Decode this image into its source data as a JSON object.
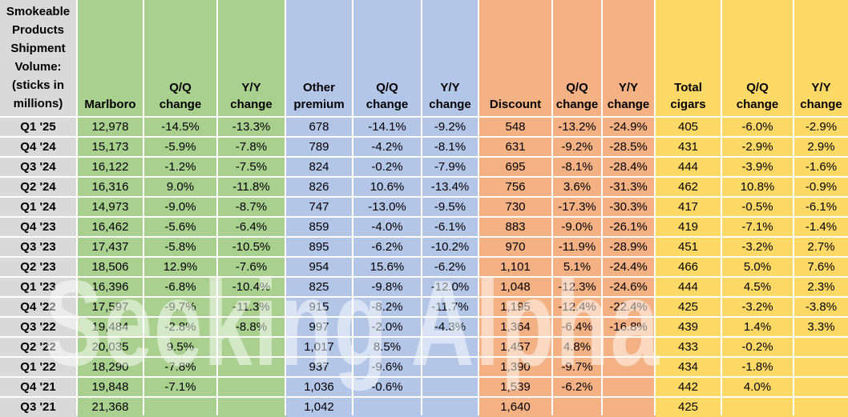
{
  "title": "Smokeable Products Shipment Volume: (sticks in millions)",
  "watermark": {
    "text": "Seeking Alpha"
  },
  "colors": {
    "label_gray": "#D9D9D9",
    "marlboro_green": "#A9D08E",
    "premium_blue": "#B4C6E7",
    "discount_orange": "#F4B183",
    "cigars_yellow": "#FFD966",
    "gridline": "#FFFFFF",
    "text": "#000000"
  },
  "header": {
    "col_groups": [
      "label",
      "marlboro",
      "marlboro",
      "marlboro",
      "premium",
      "premium",
      "premium",
      "discount",
      "discount",
      "discount",
      "cigars",
      "cigars",
      "cigars"
    ],
    "cells": [
      "Smokeable\nProducts\nShipment\nVolume:\n(sticks in\nmillions)",
      "Marlboro",
      "Q/Q\nchange",
      "Y/Y\nchange",
      "Other\npremium",
      "Q/Q\nchange",
      "Y/Y\nchange",
      "Discount",
      "Q/Q\nchange",
      "Y/Y\nchange",
      "Total\ncigars",
      "Q/Q\nchange",
      "Y/Y\nchange"
    ]
  },
  "chart_data": {
    "type": "table",
    "title": "Smokeable Products Shipment Volume: (sticks in millions)",
    "column_groups": [
      {
        "name": "Marlboro",
        "columns": [
          "Marlboro",
          "Q/Q change",
          "Y/Y change"
        ]
      },
      {
        "name": "Other premium",
        "columns": [
          "Other premium",
          "Q/Q change",
          "Y/Y change"
        ]
      },
      {
        "name": "Discount",
        "columns": [
          "Discount",
          "Q/Q change",
          "Y/Y change"
        ]
      },
      {
        "name": "Total cigars",
        "columns": [
          "Total cigars",
          "Q/Q change",
          "Y/Y change"
        ]
      }
    ],
    "columns": [
      "Quarter",
      "Marlboro",
      "Marlboro Q/Q change",
      "Marlboro Y/Y change",
      "Other premium",
      "Other premium Q/Q change",
      "Other premium Y/Y change",
      "Discount",
      "Discount Q/Q change",
      "Discount Y/Y change",
      "Total cigars",
      "Total cigars Q/Q change",
      "Total cigars Y/Y change"
    ],
    "rows": [
      [
        "Q1 '25",
        "12,978",
        "-14.5%",
        "-13.3%",
        "678",
        "-14.1%",
        "-9.2%",
        "548",
        "-13.2%",
        "-24.9%",
        "405",
        "-6.0%",
        "-2.9%"
      ],
      [
        "Q4 '24",
        "15,173",
        "-5.9%",
        "-7.8%",
        "789",
        "-4.2%",
        "-8.1%",
        "631",
        "-9.2%",
        "-28.5%",
        "431",
        "-2.9%",
        "2.9%"
      ],
      [
        "Q3 '24",
        "16,122",
        "-1.2%",
        "-7.5%",
        "824",
        "-0.2%",
        "-7.9%",
        "695",
        "-8.1%",
        "-28.4%",
        "444",
        "-3.9%",
        "-1.6%"
      ],
      [
        "Q2 '24",
        "16,316",
        "9.0%",
        "-11.8%",
        "826",
        "10.6%",
        "-13.4%",
        "756",
        "3.6%",
        "-31.3%",
        "462",
        "10.8%",
        "-0.9%"
      ],
      [
        "Q1 '24",
        "14,973",
        "-9.0%",
        "-8.7%",
        "747",
        "-13.0%",
        "-9.5%",
        "730",
        "-17.3%",
        "-30.3%",
        "417",
        "-0.5%",
        "-6.1%"
      ],
      [
        "Q4 '23",
        "16,462",
        "-5.6%",
        "-6.4%",
        "859",
        "-4.0%",
        "-6.1%",
        "883",
        "-9.0%",
        "-26.1%",
        "419",
        "-7.1%",
        "-1.4%"
      ],
      [
        "Q3 '23",
        "17,437",
        "-5.8%",
        "-10.5%",
        "895",
        "-6.2%",
        "-10.2%",
        "970",
        "-11.9%",
        "-28.9%",
        "451",
        "-3.2%",
        "2.7%"
      ],
      [
        "Q2 '23",
        "18,506",
        "12.9%",
        "-7.6%",
        "954",
        "15.6%",
        "-6.2%",
        "1,101",
        "5.1%",
        "-24.4%",
        "466",
        "5.0%",
        "7.6%"
      ],
      [
        "Q1 '23",
        "16,396",
        "-6.8%",
        "-10.4%",
        "825",
        "-9.8%",
        "-12.0%",
        "1,048",
        "-12.3%",
        "-24.6%",
        "444",
        "4.5%",
        "2.3%"
      ],
      [
        "Q4 '22",
        "17,597",
        "-9.7%",
        "-11.3%",
        "915",
        "-8.2%",
        "-11.7%",
        "1,195",
        "-12.4%",
        "-22.4%",
        "425",
        "-3.2%",
        "-3.8%"
      ],
      [
        "Q3 '22",
        "19,484",
        "-2.8%",
        "-8.8%",
        "997",
        "-2.0%",
        "-4.3%",
        "1,364",
        "-6.4%",
        "-16.8%",
        "439",
        "1.4%",
        "3.3%"
      ],
      [
        "Q2 '22",
        "20,035",
        "9.5%",
        "",
        "1,017",
        "8.5%",
        "",
        "1,457",
        "4.8%",
        "",
        "433",
        "-0.2%",
        ""
      ],
      [
        "Q1 '22",
        "18,290",
        "-7.8%",
        "",
        "937",
        "-9.6%",
        "",
        "1,390",
        "-9.7%",
        "",
        "434",
        "-1.8%",
        ""
      ],
      [
        "Q4 '21",
        "19,848",
        "-7.1%",
        "",
        "1,036",
        "-0.6%",
        "",
        "1,539",
        "-6.2%",
        "",
        "442",
        "4.0%",
        ""
      ],
      [
        "Q3 '21",
        "21,368",
        "",
        "",
        "1,042",
        "",
        "",
        "1,640",
        "",
        "",
        "425",
        "",
        ""
      ]
    ]
  }
}
